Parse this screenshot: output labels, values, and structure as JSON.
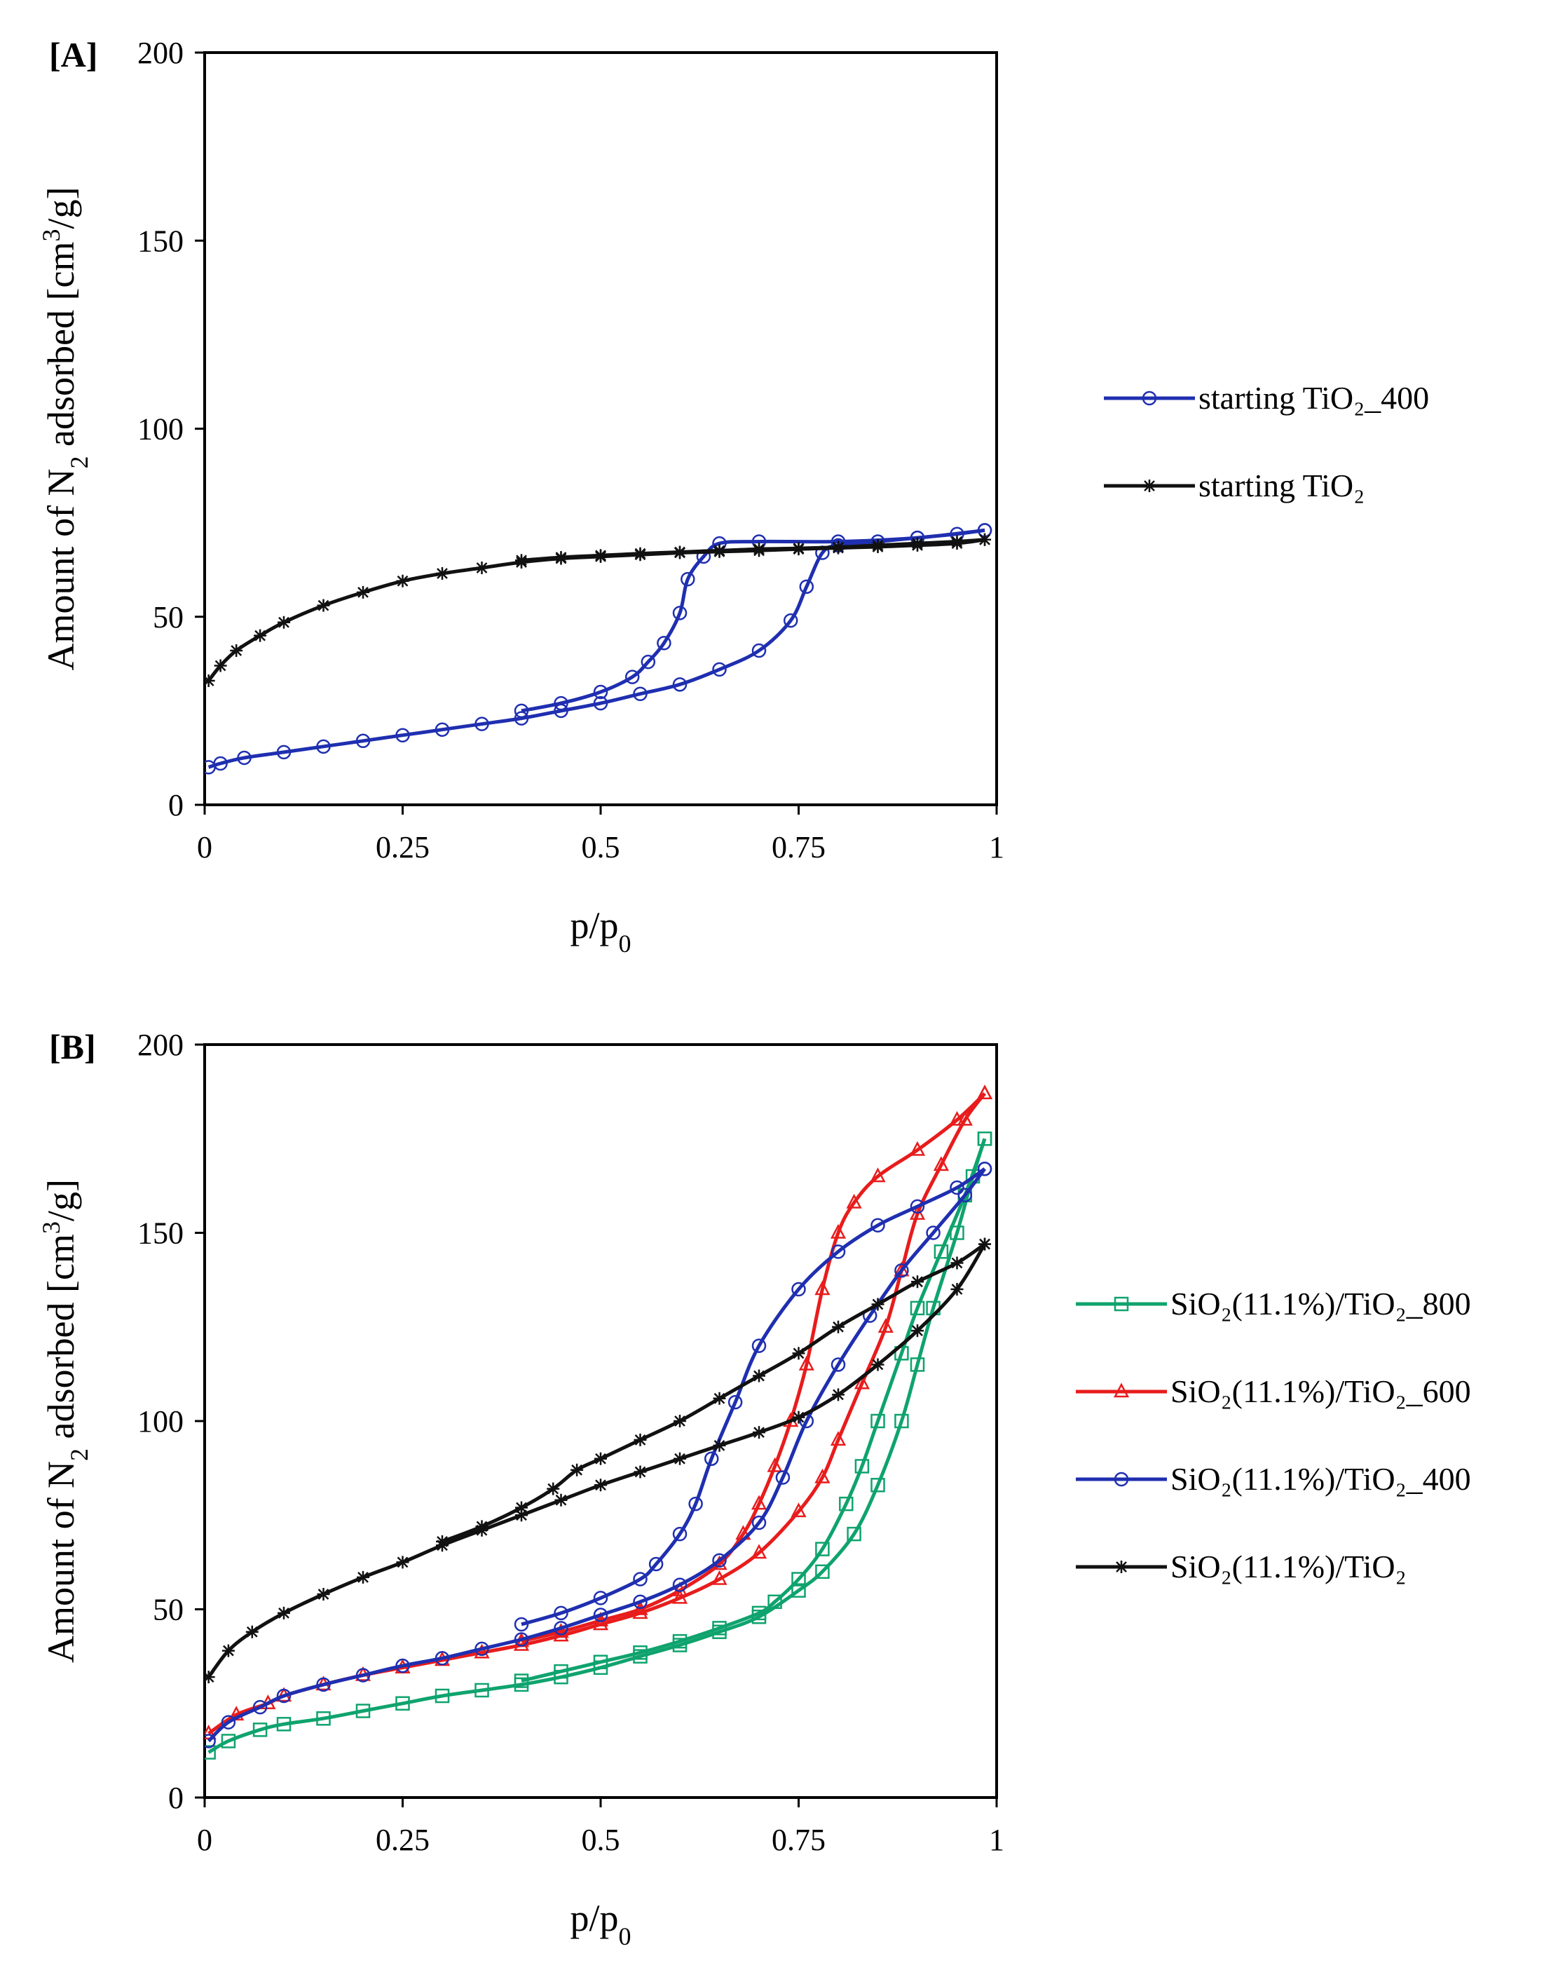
{
  "chart_data": [
    {
      "panel_label": "[A]",
      "type": "line",
      "xlabel_main": "p/p",
      "xlabel_sub": "0",
      "ylabel_parts": [
        "Amount of N",
        "2",
        " adsorbed [cm",
        "3",
        "/g]"
      ],
      "xlim": [
        0,
        1
      ],
      "ylim": [
        0,
        200
      ],
      "xticks": [
        0,
        0.25,
        0.5,
        0.75,
        1
      ],
      "xtick_labels": [
        "0",
        "0.25",
        "0.5",
        "0.75",
        "1"
      ],
      "yticks": [
        0,
        50,
        100,
        150,
        200
      ],
      "ytick_labels": [
        "0",
        "50",
        "100",
        "150",
        "200"
      ],
      "series": [
        {
          "name": "starting TiO₂_400",
          "color": "#1f2fb0",
          "marker": "circle",
          "adsorption": [
            [
              0.005,
              10
            ],
            [
              0.02,
              11
            ],
            [
              0.05,
              12.5
            ],
            [
              0.1,
              14
            ],
            [
              0.15,
              15.5
            ],
            [
              0.2,
              17
            ],
            [
              0.25,
              18.5
            ],
            [
              0.3,
              20
            ],
            [
              0.35,
              21.5
            ],
            [
              0.4,
              23
            ],
            [
              0.45,
              25
            ],
            [
              0.5,
              27
            ],
            [
              0.55,
              29.5
            ],
            [
              0.6,
              32
            ],
            [
              0.65,
              36
            ],
            [
              0.7,
              41
            ],
            [
              0.74,
              49
            ],
            [
              0.76,
              58
            ],
            [
              0.78,
              67
            ],
            [
              0.8,
              69
            ],
            [
              0.85,
              70
            ],
            [
              0.9,
              71
            ],
            [
              0.95,
              72
            ],
            [
              0.985,
              73
            ]
          ],
          "desorption": [
            [
              0.985,
              73
            ],
            [
              0.9,
              71
            ],
            [
              0.8,
              70
            ],
            [
              0.7,
              70
            ],
            [
              0.65,
              69.5
            ],
            [
              0.63,
              66
            ],
            [
              0.61,
              60
            ],
            [
              0.6,
              51
            ],
            [
              0.58,
              43
            ],
            [
              0.56,
              38
            ],
            [
              0.54,
              34
            ],
            [
              0.5,
              30
            ],
            [
              0.45,
              27
            ],
            [
              0.4,
              25
            ]
          ]
        },
        {
          "name": "starting TiO₂",
          "color": "#111111",
          "marker": "star",
          "adsorption": [
            [
              0.005,
              33
            ],
            [
              0.02,
              37
            ],
            [
              0.04,
              41
            ],
            [
              0.07,
              45
            ],
            [
              0.1,
              48.5
            ],
            [
              0.15,
              53
            ],
            [
              0.2,
              56.5
            ],
            [
              0.25,
              59.5
            ],
            [
              0.3,
              61.5
            ],
            [
              0.35,
              63
            ],
            [
              0.4,
              64.5
            ],
            [
              0.45,
              65.5
            ],
            [
              0.5,
              66
            ],
            [
              0.55,
              66.5
            ],
            [
              0.6,
              67
            ],
            [
              0.65,
              67.3
            ],
            [
              0.7,
              67.6
            ],
            [
              0.75,
              68
            ],
            [
              0.8,
              68.3
            ],
            [
              0.85,
              68.6
            ],
            [
              0.9,
              69
            ],
            [
              0.95,
              69.5
            ],
            [
              0.985,
              70.5
            ]
          ],
          "desorption": [
            [
              0.985,
              70.5
            ],
            [
              0.95,
              70
            ],
            [
              0.9,
              69.5
            ],
            [
              0.85,
              69
            ],
            [
              0.8,
              68.5
            ],
            [
              0.75,
              68.2
            ],
            [
              0.7,
              68
            ],
            [
              0.65,
              67.6
            ],
            [
              0.6,
              67.2
            ],
            [
              0.55,
              66.8
            ],
            [
              0.5,
              66.3
            ],
            [
              0.45,
              65.8
            ],
            [
              0.4,
              65
            ]
          ]
        }
      ]
    },
    {
      "panel_label": "[B]",
      "type": "line",
      "xlabel_main": "p/p",
      "xlabel_sub": "0",
      "ylabel_parts": [
        "Amount of N",
        "2",
        " adsorbed [cm",
        "3",
        "/g]"
      ],
      "xlim": [
        0,
        1
      ],
      "ylim": [
        0,
        200
      ],
      "xticks": [
        0,
        0.25,
        0.5,
        0.75,
        1
      ],
      "xtick_labels": [
        "0",
        "0.25",
        "0.5",
        "0.75",
        "1"
      ],
      "yticks": [
        0,
        50,
        100,
        150,
        200
      ],
      "ytick_labels": [
        "0",
        "50",
        "100",
        "150",
        "200"
      ],
      "series": [
        {
          "name": "SiO₂(11.1%)/TiO₂_800",
          "color": "#0fa36e",
          "marker": "square",
          "adsorption": [
            [
              0.005,
              12
            ],
            [
              0.03,
              15
            ],
            [
              0.07,
              18
            ],
            [
              0.1,
              19.5
            ],
            [
              0.15,
              21
            ],
            [
              0.2,
              23
            ],
            [
              0.25,
              25
            ],
            [
              0.3,
              27
            ],
            [
              0.35,
              28.5
            ],
            [
              0.4,
              30
            ],
            [
              0.45,
              32
            ],
            [
              0.5,
              34.5
            ],
            [
              0.55,
              37.5
            ],
            [
              0.6,
              40.5
            ],
            [
              0.65,
              44
            ],
            [
              0.7,
              48
            ],
            [
              0.75,
              55
            ],
            [
              0.78,
              60
            ],
            [
              0.82,
              70
            ],
            [
              0.85,
              83
            ],
            [
              0.88,
              100
            ],
            [
              0.9,
              115
            ],
            [
              0.92,
              130
            ],
            [
              0.95,
              150
            ],
            [
              0.97,
              165
            ],
            [
              0.985,
              175
            ]
          ],
          "desorption": [
            [
              0.985,
              175
            ],
            [
              0.96,
              160
            ],
            [
              0.93,
              145
            ],
            [
              0.9,
              130
            ],
            [
              0.88,
              118
            ],
            [
              0.85,
              100
            ],
            [
              0.83,
              88
            ],
            [
              0.81,
              78
            ],
            [
              0.78,
              66
            ],
            [
              0.75,
              58
            ],
            [
              0.72,
              52
            ],
            [
              0.7,
              49
            ],
            [
              0.65,
              45
            ],
            [
              0.6,
              41.5
            ],
            [
              0.55,
              38.5
            ],
            [
              0.5,
              36
            ],
            [
              0.45,
              33.5
            ],
            [
              0.4,
              31
            ]
          ]
        },
        {
          "name": "SiO₂(11.1%)/TiO₂_600",
          "color": "#e81c1c",
          "marker": "triangle",
          "adsorption": [
            [
              0.005,
              17
            ],
            [
              0.04,
              22
            ],
            [
              0.08,
              25
            ],
            [
              0.1,
              27
            ],
            [
              0.15,
              30
            ],
            [
              0.2,
              32.5
            ],
            [
              0.25,
              34.5
            ],
            [
              0.3,
              36.5
            ],
            [
              0.35,
              38.5
            ],
            [
              0.4,
              40.5
            ],
            [
              0.45,
              43
            ],
            [
              0.5,
              46
            ],
            [
              0.55,
              49
            ],
            [
              0.6,
              53
            ],
            [
              0.65,
              58
            ],
            [
              0.7,
              65
            ],
            [
              0.75,
              76
            ],
            [
              0.78,
              85
            ],
            [
              0.8,
              95
            ],
            [
              0.83,
              110
            ],
            [
              0.86,
              125
            ],
            [
              0.88,
              140
            ],
            [
              0.9,
              155
            ],
            [
              0.93,
              168
            ],
            [
              0.96,
              180
            ],
            [
              0.985,
              187
            ]
          ],
          "desorption": [
            [
              0.985,
              187
            ],
            [
              0.95,
              180
            ],
            [
              0.9,
              172
            ],
            [
              0.85,
              165
            ],
            [
              0.82,
              158
            ],
            [
              0.8,
              150
            ],
            [
              0.78,
              135
            ],
            [
              0.76,
              115
            ],
            [
              0.74,
              100
            ],
            [
              0.72,
              88
            ],
            [
              0.7,
              78
            ],
            [
              0.68,
              70
            ],
            [
              0.65,
              62
            ],
            [
              0.6,
              55
            ],
            [
              0.55,
              50
            ],
            [
              0.5,
              47
            ],
            [
              0.45,
              44
            ],
            [
              0.4,
              41.5
            ]
          ]
        },
        {
          "name": "SiO₂(11.1%)/TiO₂_400",
          "color": "#1f2fb0",
          "marker": "circle",
          "adsorption": [
            [
              0.005,
              15
            ],
            [
              0.03,
              20
            ],
            [
              0.07,
              24
            ],
            [
              0.1,
              27
            ],
            [
              0.15,
              30
            ],
            [
              0.2,
              32.5
            ],
            [
              0.25,
              35
            ],
            [
              0.3,
              37
            ],
            [
              0.35,
              39.5
            ],
            [
              0.4,
              42
            ],
            [
              0.45,
              45
            ],
            [
              0.5,
              48.5
            ],
            [
              0.55,
              52
            ],
            [
              0.6,
              56.5
            ],
            [
              0.65,
              63
            ],
            [
              0.7,
              73
            ],
            [
              0.73,
              85
            ],
            [
              0.76,
              100
            ],
            [
              0.8,
              115
            ],
            [
              0.84,
              128
            ],
            [
              0.88,
              140
            ],
            [
              0.92,
              150
            ],
            [
              0.96,
              160
            ],
            [
              0.985,
              167
            ]
          ],
          "desorption": [
            [
              0.985,
              167
            ],
            [
              0.95,
              162
            ],
            [
              0.9,
              157
            ],
            [
              0.85,
              152
            ],
            [
              0.8,
              145
            ],
            [
              0.75,
              135
            ],
            [
              0.7,
              120
            ],
            [
              0.67,
              105
            ],
            [
              0.64,
              90
            ],
            [
              0.62,
              78
            ],
            [
              0.6,
              70
            ],
            [
              0.57,
              62
            ],
            [
              0.55,
              58
            ],
            [
              0.5,
              53
            ],
            [
              0.45,
              49
            ],
            [
              0.4,
              46
            ]
          ]
        },
        {
          "name": "SiO₂(11.1%)/TiO₂",
          "color": "#111111",
          "marker": "star",
          "adsorption": [
            [
              0.005,
              32
            ],
            [
              0.03,
              39
            ],
            [
              0.06,
              44
            ],
            [
              0.1,
              49
            ],
            [
              0.15,
              54
            ],
            [
              0.2,
              58.5
            ],
            [
              0.25,
              62.5
            ],
            [
              0.3,
              67
            ],
            [
              0.35,
              71
            ],
            [
              0.4,
              75
            ],
            [
              0.45,
              79
            ],
            [
              0.5,
              83
            ],
            [
              0.55,
              86.5
            ],
            [
              0.6,
              90
            ],
            [
              0.65,
              93.5
            ],
            [
              0.7,
              97
            ],
            [
              0.75,
              101
            ],
            [
              0.8,
              107
            ],
            [
              0.85,
              115
            ],
            [
              0.9,
              124
            ],
            [
              0.95,
              135
            ],
            [
              0.985,
              147
            ]
          ],
          "desorption": [
            [
              0.985,
              147
            ],
            [
              0.95,
              142
            ],
            [
              0.9,
              137
            ],
            [
              0.85,
              131
            ],
            [
              0.8,
              125
            ],
            [
              0.75,
              118
            ],
            [
              0.7,
              112
            ],
            [
              0.65,
              106
            ],
            [
              0.6,
              100
            ],
            [
              0.55,
              95
            ],
            [
              0.5,
              90
            ],
            [
              0.47,
              87
            ],
            [
              0.44,
              82
            ],
            [
              0.4,
              77
            ],
            [
              0.35,
              72
            ],
            [
              0.3,
              68
            ]
          ]
        }
      ]
    }
  ]
}
